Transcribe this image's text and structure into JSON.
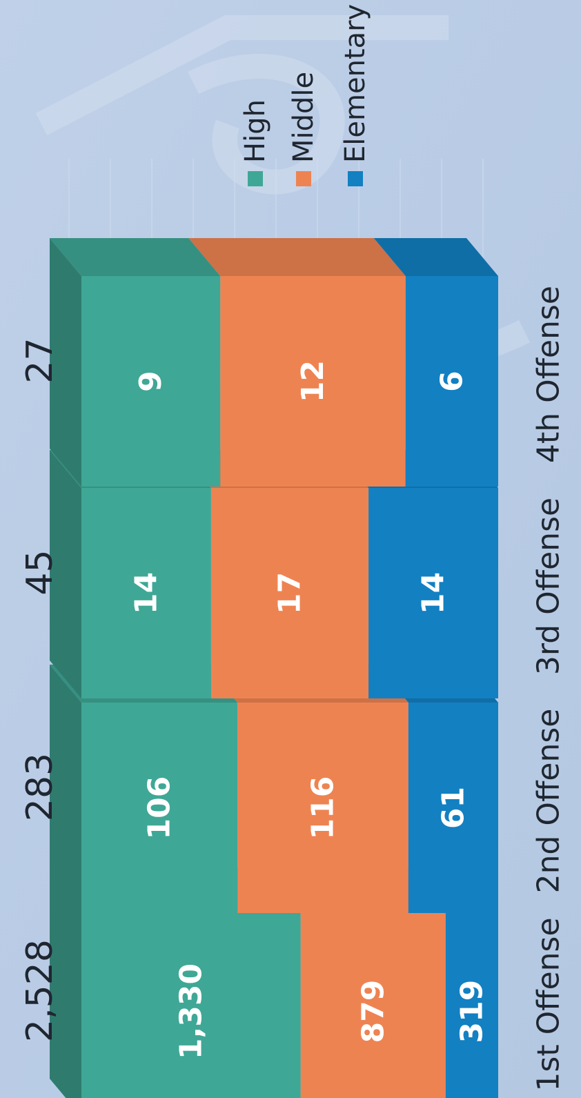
{
  "chart_data": {
    "type": "bar",
    "stacked": true,
    "orientation": "rotated-90-ccw",
    "categories": [
      "1st Offense",
      "2nd Offense",
      "3rd Offense",
      "4th Offense"
    ],
    "totals": [
      "2,528",
      "283",
      "45",
      "27"
    ],
    "series": [
      {
        "name": "High",
        "color": "#3fa796",
        "values": [
          1330,
          106,
          14,
          9
        ],
        "labels": [
          "1,330",
          "106",
          "14",
          "9"
        ]
      },
      {
        "name": "Middle",
        "color": "#ee8352",
        "values": [
          879,
          116,
          17,
          12
        ],
        "labels": [
          "879",
          "116",
          "17",
          "12"
        ]
      },
      {
        "name": "Elementary",
        "color": "#1380c2",
        "values": [
          319,
          61,
          14,
          6
        ],
        "labels": [
          "319",
          "61",
          "14",
          "6"
        ]
      }
    ],
    "legend_position": "top-right",
    "grid": true
  },
  "colors": {
    "background": "#b9cce6",
    "text": "#1f2630",
    "value_label": "#ffffff"
  }
}
